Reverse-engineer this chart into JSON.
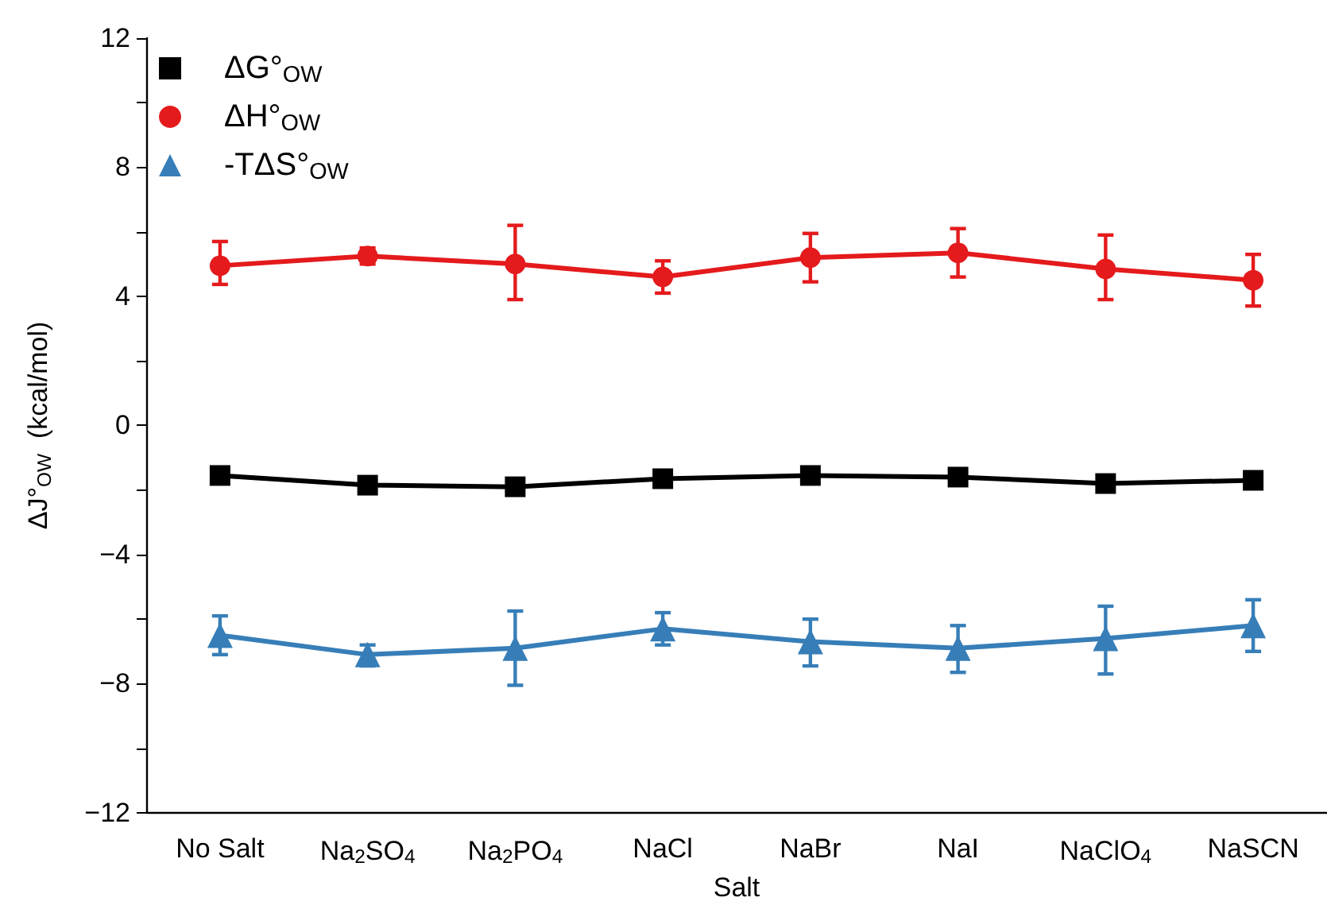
{
  "chart_data": {
    "type": "line",
    "xlabel": "Salt",
    "ylabel": "ΔJ°$_{OW}$  (kcal/mol)",
    "categories": [
      "No Salt",
      "Na$_{2}$SO$_{4}$",
      "Na$_{2}$PO$_{4}$",
      "NaCl",
      "NaBr",
      "NaI",
      "NaClO$_{4}$",
      "NaSCN"
    ],
    "series": [
      {
        "name": "ΔG°$_{OW}$",
        "color": "#000000",
        "marker": "square",
        "values": [
          -1.55,
          -1.85,
          -1.9,
          -1.65,
          -1.55,
          -1.6,
          -1.8,
          -1.7
        ]
      },
      {
        "name": "ΔH°$_{OW}$",
        "color": "#e41a1c",
        "marker": "circle",
        "values": [
          4.95,
          5.25,
          5.0,
          4.6,
          5.2,
          5.35,
          4.85,
          4.5
        ],
        "errors": [
          [
            4.37,
            5.7
          ],
          [
            5.0,
            5.5
          ],
          [
            3.9,
            6.2
          ],
          [
            4.1,
            5.1
          ],
          [
            4.45,
            5.95
          ],
          [
            4.6,
            6.1
          ],
          [
            3.9,
            5.9
          ],
          [
            3.7,
            5.3
          ]
        ]
      },
      {
        "name": "-TΔS°$_{OW}$",
        "color": "#377eb8",
        "marker": "triangle",
        "values": [
          -6.5,
          -7.1,
          -6.9,
          -6.3,
          -6.7,
          -6.9,
          -6.6,
          -6.2
        ],
        "errors": [
          [
            -7.1,
            -5.9
          ],
          [
            -7.45,
            -6.8
          ],
          [
            -8.05,
            -5.75
          ],
          [
            -6.8,
            -5.8
          ],
          [
            -7.45,
            -6.0
          ],
          [
            -7.65,
            -6.2
          ],
          [
            -7.7,
            -5.6
          ],
          [
            -7.0,
            -5.4
          ]
        ]
      }
    ],
    "ylim": [
      -12,
      12
    ],
    "yticks": [
      -12,
      {
        "value": -10,
        "label": null
      },
      -8,
      {
        "value": -6,
        "label": null
      },
      -4,
      {
        "value": -2,
        "label": null
      },
      0,
      {
        "value": 2,
        "label": null
      },
      4,
      {
        "value": 6,
        "label": null
      },
      8,
      {
        "value": 10,
        "label": null
      },
      12
    ],
    "grid": false,
    "legend": "top left",
    "line_style": "solid"
  }
}
